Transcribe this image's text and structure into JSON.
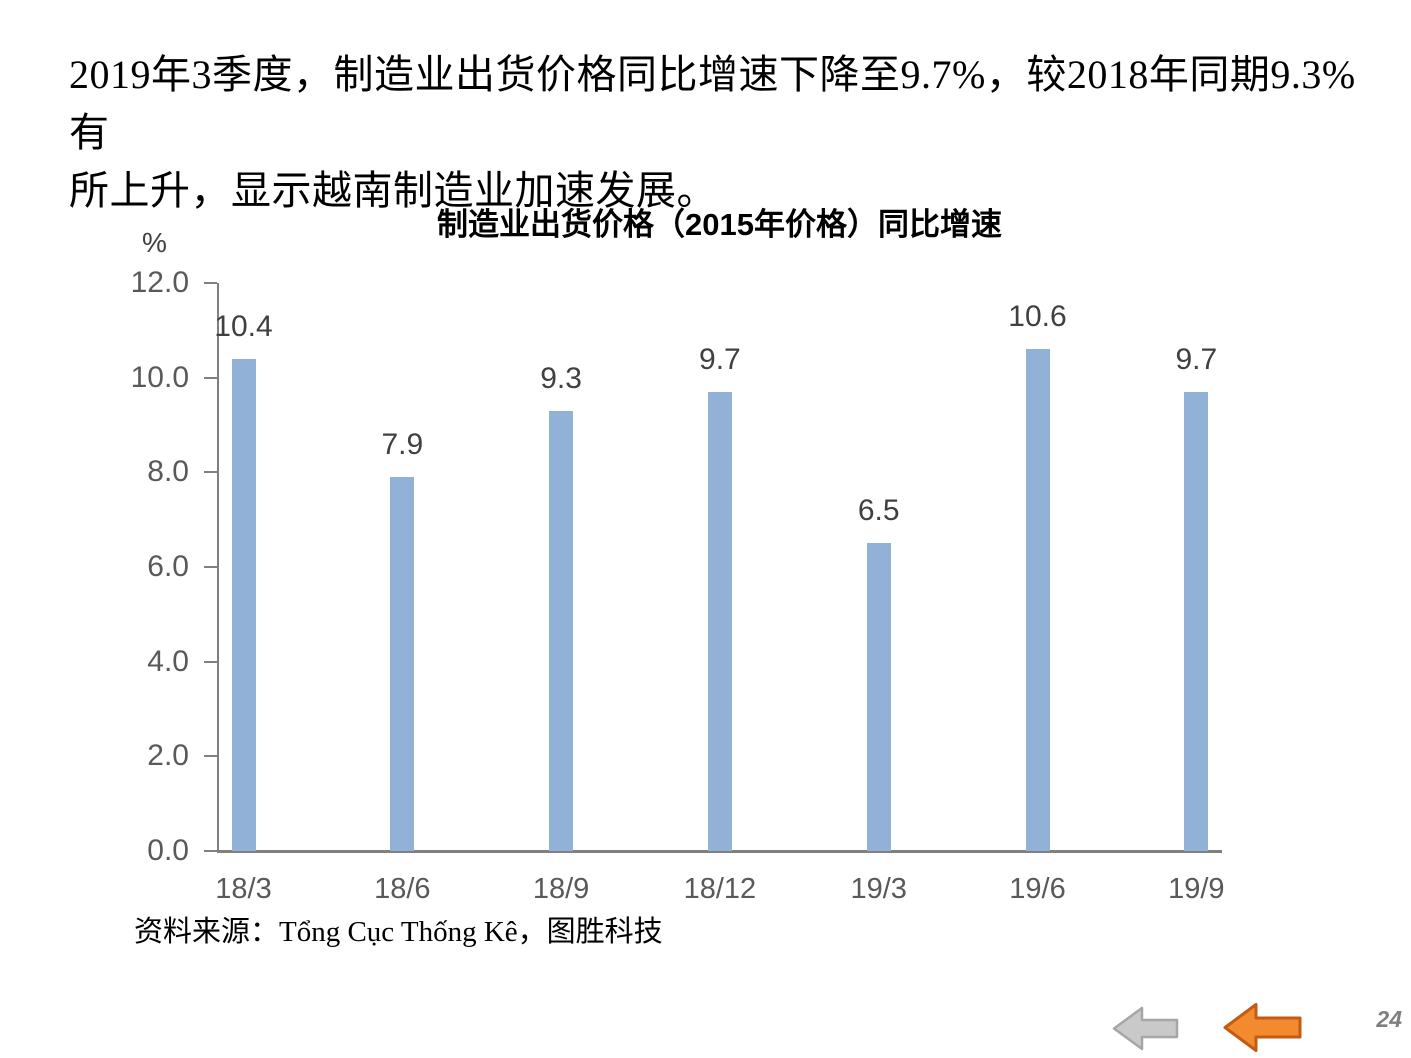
{
  "page": {
    "headline_lines": [
      "2019年3季度，制造业出货价格同比增速下降至9.7%，较2018年同期9.3%有",
      "所上升，显示越南制造业加速发展。"
    ],
    "source": "资料来源：Tổng Cục Thống Kê，图胜科技",
    "page_number": "24"
  },
  "chart_data": {
    "type": "bar",
    "title": "制造业出货价格（2015年价格）同比增速",
    "unit_label": "%",
    "categories": [
      "18/3",
      "18/6",
      "18/9",
      "18/12",
      "19/3",
      "19/6",
      "19/9"
    ],
    "values": [
      10.4,
      7.9,
      9.3,
      9.7,
      6.5,
      10.6,
      9.7
    ],
    "data_labels": [
      "10.4",
      "7.9",
      "9.3",
      "9.7",
      "6.5",
      "10.6",
      "9.7"
    ],
    "xlabel": "",
    "ylabel": "%",
    "ylim": [
      0,
      12
    ],
    "ytick_step": 2,
    "ytick_labels": [
      "0.0",
      "2.0",
      "4.0",
      "6.0",
      "8.0",
      "10.0",
      "12.0"
    ],
    "grid": false,
    "legend": "none",
    "colors": {
      "bar": "#92B1D7",
      "axis": "#808080",
      "tick_label": "#595959",
      "value_label": "#404040"
    }
  },
  "nav": {
    "back_icon": "gray-left-block-arrow",
    "active_icon": "orange-left-block-arrow",
    "colors": {
      "gray_fill": "#C9C9C9",
      "gray_stroke": "#A6A6A6",
      "orange_fill": "#F28A30",
      "orange_stroke": "#C55A11"
    }
  }
}
